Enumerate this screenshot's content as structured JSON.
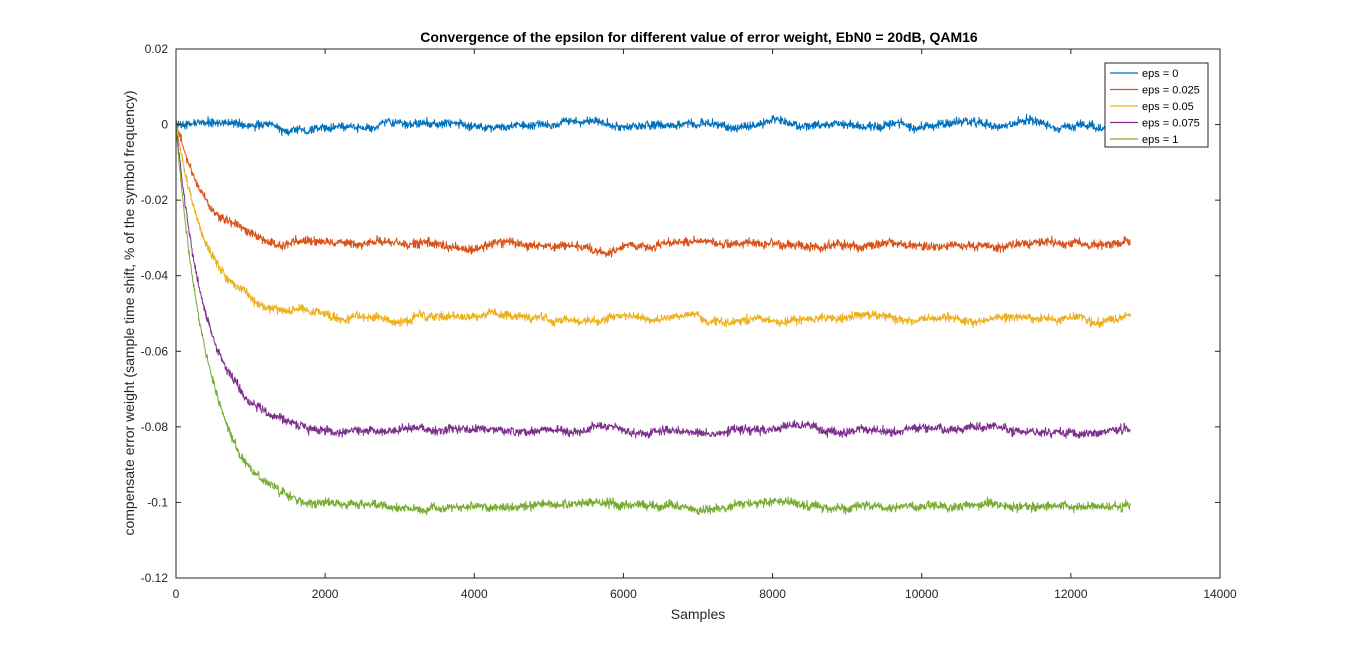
{
  "chart_data": {
    "type": "line",
    "title": "Convergence of the epsilon for different value of error weight, EbN0 = 20dB, QAM16",
    "xlabel": "Samples",
    "ylabel": "compensate error weight (sample time shift, % of the symbol frequency)",
    "xlim": [
      0,
      14000
    ],
    "ylim": [
      -0.12,
      0.02
    ],
    "xticks": [
      0,
      2000,
      4000,
      6000,
      8000,
      10000,
      12000,
      14000
    ],
    "xtick_labels": [
      "0",
      "2000",
      "4000",
      "6000",
      "8000",
      "10000",
      "12000",
      "14000"
    ],
    "yticks": [
      0.02,
      0,
      -0.02,
      -0.04,
      -0.06,
      -0.08,
      -0.1,
      -0.12
    ],
    "ytick_labels": [
      "0.02",
      "0",
      "-0.02",
      "-0.04",
      "-0.06",
      "-0.08",
      "-0.1",
      "-0.12"
    ],
    "grid": false,
    "legend_position": "top-right",
    "x_end": 12800,
    "series": [
      {
        "name": "eps = 0",
        "color": "#0072BD",
        "start": 0,
        "final": 0.0,
        "tau": 300,
        "noise": 0.0011,
        "wander": 0.001
      },
      {
        "name": "eps = 0.025",
        "color": "#D95319",
        "start": 0,
        "final": -0.032,
        "tau": 420,
        "noise": 0.0011,
        "wander": 0.0008
      },
      {
        "name": "eps = 0.05",
        "color": "#EDB120",
        "start": 0,
        "final": -0.051,
        "tau": 420,
        "noise": 0.0011,
        "wander": 0.0008
      },
      {
        "name": "eps = 0.075",
        "color": "#7E2F8E",
        "start": 0,
        "final": -0.081,
        "tau": 420,
        "noise": 0.0011,
        "wander": 0.0008
      },
      {
        "name": "eps = 1",
        "color": "#77AC30",
        "start": 0,
        "final": -0.101,
        "tau": 420,
        "noise": 0.0011,
        "wander": 0.0008
      }
    ]
  }
}
